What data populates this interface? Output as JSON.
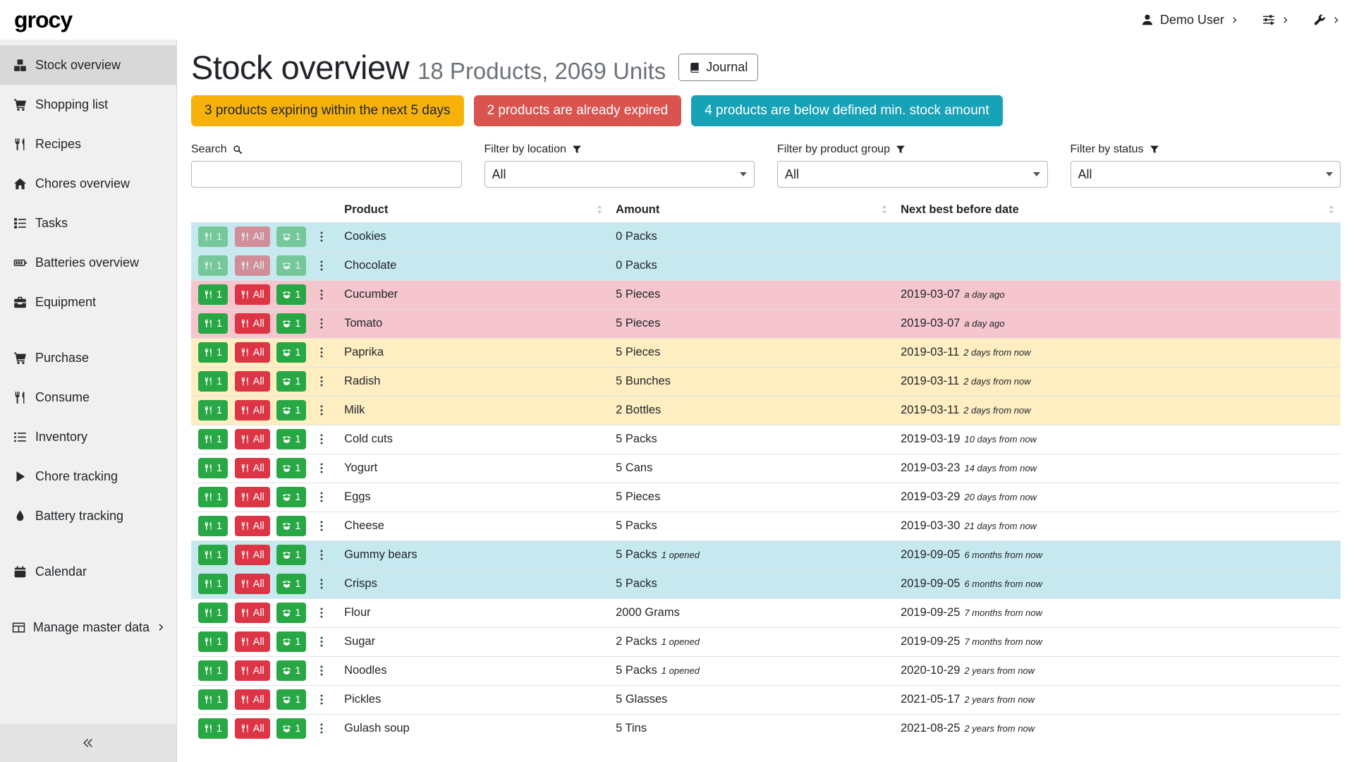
{
  "colors": {
    "badge_warning": "#f6b20b",
    "badge_danger": "#d9534f",
    "badge_info": "#17a2b8",
    "row_info": "#c6e9ef",
    "row_warning": "#ffeec2",
    "row_danger": "#f5c6ce",
    "button_green": "#28a745",
    "button_red": "#dc3545",
    "sidebar_active_bg": "#d8d8d8"
  },
  "header": {
    "logo": "grocy",
    "user_label": "Demo User",
    "icons": [
      "user-icon",
      "chevron-right-icon",
      "sliders-icon",
      "wrench-icon"
    ]
  },
  "sidebar": {
    "collapse_icon": "chevrons-left-icon",
    "groups": [
      {
        "items": [
          {
            "label": "Stock overview",
            "icon": "boxes-icon",
            "active": true
          },
          {
            "label": "Shopping list",
            "icon": "cart-icon"
          },
          {
            "label": "Recipes",
            "icon": "utensils-icon"
          },
          {
            "label": "Chores overview",
            "icon": "home-icon"
          },
          {
            "label": "Tasks",
            "icon": "tasks-icon"
          },
          {
            "label": "Batteries overview",
            "icon": "battery-icon"
          },
          {
            "label": "Equipment",
            "icon": "toolbox-icon"
          }
        ]
      },
      {
        "items": [
          {
            "label": "Purchase",
            "icon": "cart-icon"
          },
          {
            "label": "Consume",
            "icon": "utensils-icon"
          },
          {
            "label": "Inventory",
            "icon": "list-icon"
          },
          {
            "label": "Chore tracking",
            "icon": "play-icon"
          },
          {
            "label": "Battery tracking",
            "icon": "droplet-icon"
          }
        ]
      },
      {
        "items": [
          {
            "label": "Calendar",
            "icon": "calendar-icon"
          }
        ]
      },
      {
        "items": [
          {
            "label": "Manage master data",
            "icon": "table-icon",
            "chevron": true
          }
        ]
      }
    ]
  },
  "main": {
    "title": "Stock overview",
    "subtitle": "18 Products, 2069 Units",
    "journal_label": "Journal",
    "journal_icon": "book-icon",
    "badges": [
      {
        "text": "3 products expiring within the next 5 days",
        "bg": "#f6b20b",
        "fg": "#212529"
      },
      {
        "text": "2 products are already expired",
        "bg": "#d9534f",
        "fg": "#ffffff"
      },
      {
        "text": "4 products are below defined min. stock amount",
        "bg": "#17a2b8",
        "fg": "#ffffff"
      }
    ],
    "filters": {
      "search": {
        "label": "Search",
        "icon": "search-icon",
        "value": ""
      },
      "location": {
        "label": "Filter by location",
        "icon": "filter-icon",
        "value": "All"
      },
      "product_group": {
        "label": "Filter by product group",
        "icon": "filter-icon",
        "value": "All"
      },
      "status": {
        "label": "Filter by status",
        "icon": "filter-icon",
        "value": "All"
      }
    },
    "table": {
      "columns": [
        "Product",
        "Amount",
        "Next best before date"
      ],
      "sort_icon": "sort-icon",
      "buttons": {
        "consume_one": "1",
        "consume_all": "All",
        "open_one": "1"
      },
      "button_icons": {
        "consume_one": "utensils-icon",
        "consume_all": "utensils-icon",
        "open_one": "box-open-icon",
        "menu": "dots-icon"
      },
      "rows": [
        {
          "product": "Cookies",
          "amount": "0 Packs",
          "amount_note": "",
          "date": "",
          "date_note": "",
          "status": "info",
          "dim_buttons": true
        },
        {
          "product": "Chocolate",
          "amount": "0 Packs",
          "amount_note": "",
          "date": "",
          "date_note": "",
          "status": "info",
          "dim_buttons": true
        },
        {
          "product": "Cucumber",
          "amount": "5 Pieces",
          "amount_note": "",
          "date": "2019-03-07",
          "date_note": "a day ago",
          "status": "danger",
          "dim_buttons": false
        },
        {
          "product": "Tomato",
          "amount": "5 Pieces",
          "amount_note": "",
          "date": "2019-03-07",
          "date_note": "a day ago",
          "status": "danger",
          "dim_buttons": false
        },
        {
          "product": "Paprika",
          "amount": "5 Pieces",
          "amount_note": "",
          "date": "2019-03-11",
          "date_note": "2 days from now",
          "status": "warning",
          "dim_buttons": false
        },
        {
          "product": "Radish",
          "amount": "5 Bunches",
          "amount_note": "",
          "date": "2019-03-11",
          "date_note": "2 days from now",
          "status": "warning",
          "dim_buttons": false
        },
        {
          "product": "Milk",
          "amount": "2 Bottles",
          "amount_note": "",
          "date": "2019-03-11",
          "date_note": "2 days from now",
          "status": "warning",
          "dim_buttons": false
        },
        {
          "product": "Cold cuts",
          "amount": "5 Packs",
          "amount_note": "",
          "date": "2019-03-19",
          "date_note": "10 days from now",
          "status": "none",
          "dim_buttons": false
        },
        {
          "product": "Yogurt",
          "amount": "5 Cans",
          "amount_note": "",
          "date": "2019-03-23",
          "date_note": "14 days from now",
          "status": "none",
          "dim_buttons": false
        },
        {
          "product": "Eggs",
          "amount": "5 Pieces",
          "amount_note": "",
          "date": "2019-03-29",
          "date_note": "20 days from now",
          "status": "none",
          "dim_buttons": false
        },
        {
          "product": "Cheese",
          "amount": "5 Packs",
          "amount_note": "",
          "date": "2019-03-30",
          "date_note": "21 days from now",
          "status": "none",
          "dim_buttons": false
        },
        {
          "product": "Gummy bears",
          "amount": "5 Packs",
          "amount_note": "1 opened",
          "date": "2019-09-05",
          "date_note": "6 months from now",
          "status": "info",
          "dim_buttons": false
        },
        {
          "product": "Crisps",
          "amount": "5 Packs",
          "amount_note": "",
          "date": "2019-09-05",
          "date_note": "6 months from now",
          "status": "info",
          "dim_buttons": false
        },
        {
          "product": "Flour",
          "amount": "2000 Grams",
          "amount_note": "",
          "date": "2019-09-25",
          "date_note": "7 months from now",
          "status": "none",
          "dim_buttons": false
        },
        {
          "product": "Sugar",
          "amount": "2 Packs",
          "amount_note": "1 opened",
          "date": "2019-09-25",
          "date_note": "7 months from now",
          "status": "none",
          "dim_buttons": false
        },
        {
          "product": "Noodles",
          "amount": "5 Packs",
          "amount_note": "1 opened",
          "date": "2020-10-29",
          "date_note": "2 years from now",
          "status": "none",
          "dim_buttons": false
        },
        {
          "product": "Pickles",
          "amount": "5 Glasses",
          "amount_note": "",
          "date": "2021-05-17",
          "date_note": "2 years from now",
          "status": "none",
          "dim_buttons": false
        },
        {
          "product": "Gulash soup",
          "amount": "5 Tins",
          "amount_note": "",
          "date": "2021-08-25",
          "date_note": "2 years from now",
          "status": "none",
          "dim_buttons": false
        }
      ]
    }
  }
}
